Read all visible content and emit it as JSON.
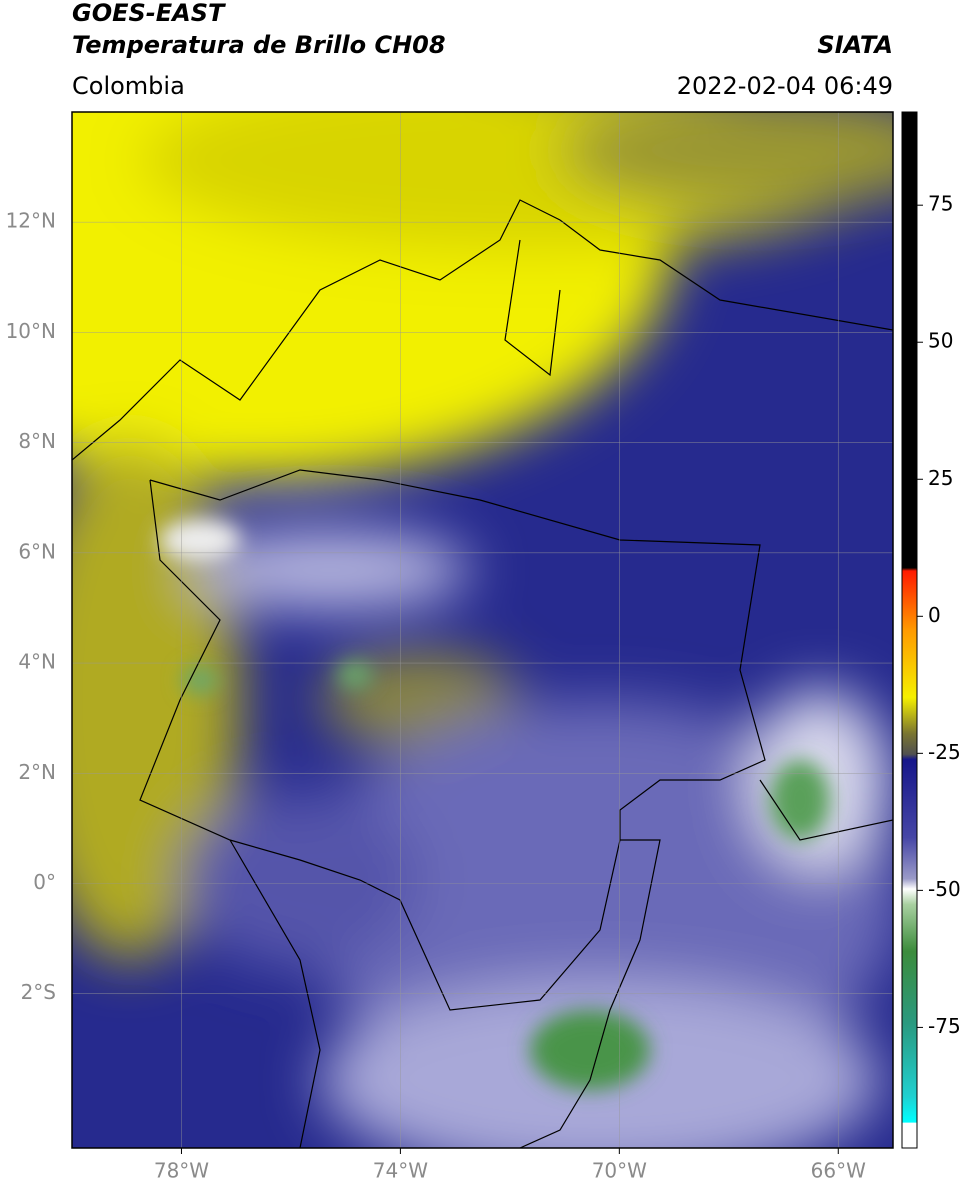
{
  "map": {
    "title": "GOES-EAST",
    "subtitle": "Temperatura de Brillo CH08",
    "source": "SIATA",
    "region": "Colombia",
    "datetime": "2022-02-04 06:49",
    "xlim": [
      -80,
      -65
    ],
    "ylim": [
      -4.8,
      14
    ],
    "lat_ticks": [
      {
        "value": 12,
        "label": "12°N"
      },
      {
        "value": 10,
        "label": "10°N"
      },
      {
        "value": 8,
        "label": "8°N"
      },
      {
        "value": 6,
        "label": "6°N"
      },
      {
        "value": 4,
        "label": "4°N"
      },
      {
        "value": 2,
        "label": "2°N"
      },
      {
        "value": 0,
        "label": "0°"
      },
      {
        "value": -2,
        "label": "2°S"
      }
    ],
    "lon_ticks": [
      {
        "value": -78,
        "label": "78°W"
      },
      {
        "value": -74,
        "label": "74°W"
      },
      {
        "value": -70,
        "label": "70°W"
      },
      {
        "value": -66,
        "label": "66°W"
      }
    ],
    "colorbar": {
      "lim": [
        -97,
        92
      ],
      "ticks": [
        75,
        50,
        25,
        0,
        -25,
        -50,
        -75
      ]
    }
  }
}
